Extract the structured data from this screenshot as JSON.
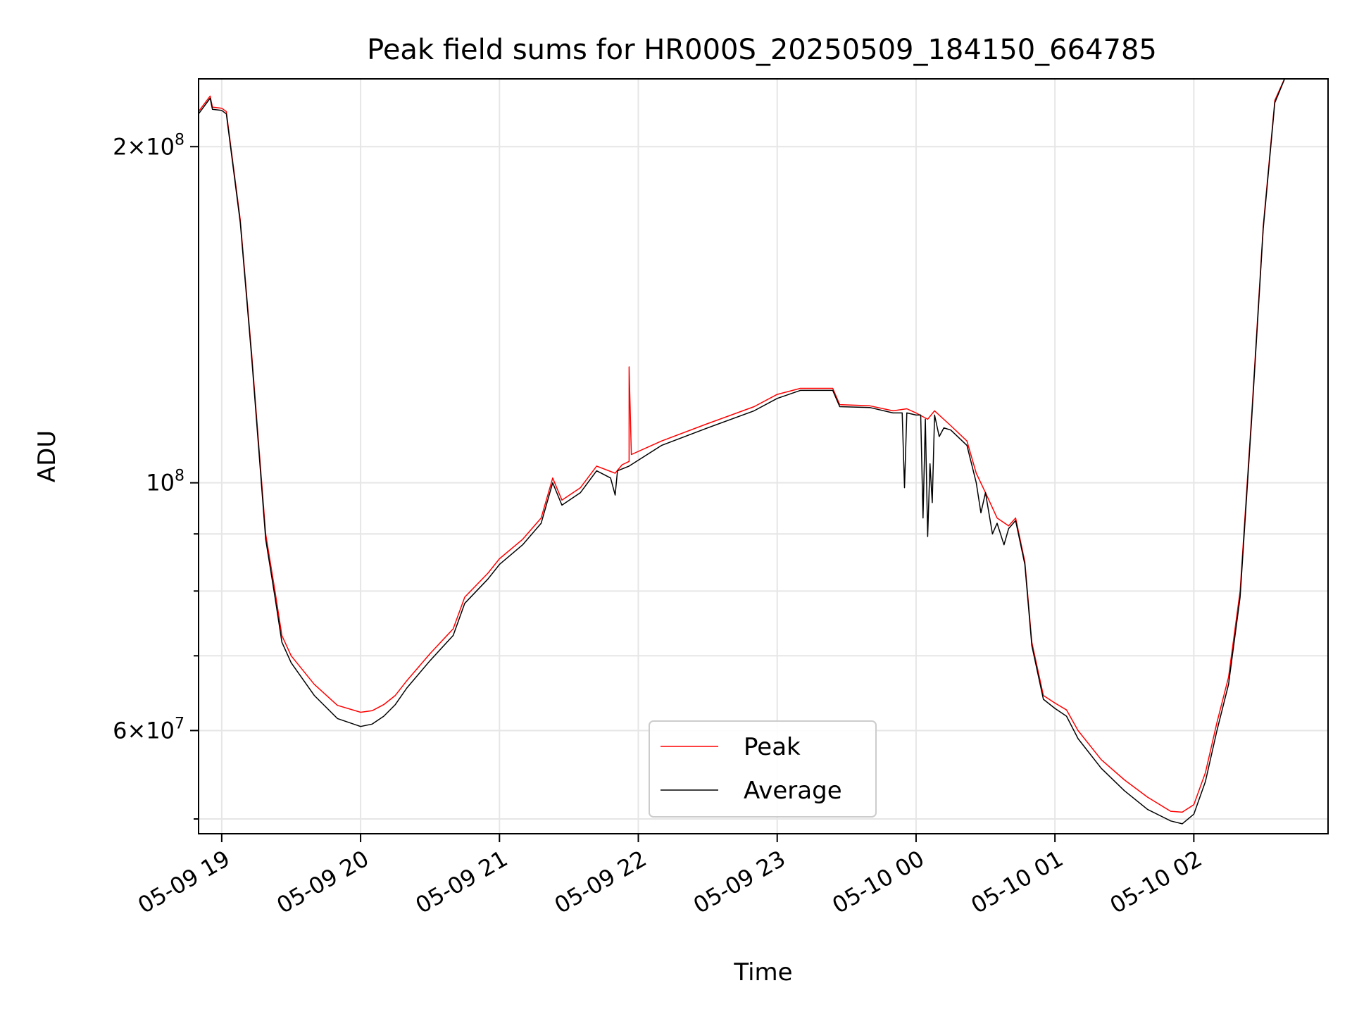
{
  "chart_data": {
    "type": "line",
    "title": "Peak field sums for HR000S_20250509_184150_664785",
    "xlabel": "Time",
    "ylabel": "ADU",
    "y_scale": "log",
    "ylim": [
      48500000,
      230000000
    ],
    "xlim": [
      "05-09 18:50",
      "05-10 02:58"
    ],
    "grid": true,
    "legend_position": "lower-center",
    "x_ticks": [
      {
        "t": "05-09 19:00",
        "label": "05-09 19"
      },
      {
        "t": "05-09 20:00",
        "label": "05-09 20"
      },
      {
        "t": "05-09 21:00",
        "label": "05-09 21"
      },
      {
        "t": "05-09 22:00",
        "label": "05-09 22"
      },
      {
        "t": "05-09 23:00",
        "label": "05-09 23"
      },
      {
        "t": "05-10 00:00",
        "label": "05-10 00"
      },
      {
        "t": "05-10 01:00",
        "label": "05-10 01"
      },
      {
        "t": "05-10 02:00",
        "label": "05-10 02"
      }
    ],
    "y_major_ticks": [
      {
        "value": 60000000,
        "mantissa": "6",
        "exponent": "7"
      },
      {
        "value": 100000000,
        "mantissa": "",
        "exponent": "8"
      },
      {
        "value": 200000000,
        "mantissa": "2",
        "exponent": "8"
      }
    ],
    "y_minor_ticks": [
      50000000,
      70000000,
      80000000,
      90000000
    ],
    "series": [
      {
        "name": "Peak",
        "color": "#ff0000",
        "points": [
          [
            "05-09 18:50",
            215000000
          ],
          [
            "05-09 18:55",
            222000000
          ],
          [
            "05-09 18:56",
            217000000
          ],
          [
            "05-09 19:00",
            216500000
          ],
          [
            "05-09 19:02",
            215000000
          ],
          [
            "05-09 19:08",
            172000000
          ],
          [
            "05-09 19:13",
            130000000
          ],
          [
            "05-09 19:19",
            90000000
          ],
          [
            "05-09 19:23",
            80000000
          ],
          [
            "05-09 19:26",
            73000000
          ],
          [
            "05-09 19:30",
            70000000
          ],
          [
            "05-09 19:40",
            66000000
          ],
          [
            "05-09 19:50",
            63200000
          ],
          [
            "05-09 20:00",
            62300000
          ],
          [
            "05-09 20:05",
            62500000
          ],
          [
            "05-09 20:10",
            63300000
          ],
          [
            "05-09 20:15",
            64500000
          ],
          [
            "05-09 20:20",
            66500000
          ],
          [
            "05-09 20:30",
            70300000
          ],
          [
            "05-09 20:40",
            74000000
          ],
          [
            "05-09 20:45",
            79000000
          ],
          [
            "05-09 20:55",
            83000000
          ],
          [
            "05-09 21:00",
            85500000
          ],
          [
            "05-09 21:10",
            89000000
          ],
          [
            "05-09 21:18",
            93000000
          ],
          [
            "05-09 21:23",
            101000000
          ],
          [
            "05-09 21:27",
            96500000
          ],
          [
            "05-09 21:35",
            99000000
          ],
          [
            "05-09 21:42",
            103500000
          ],
          [
            "05-09 21:50",
            102000000
          ],
          [
            "05-09 21:53",
            103800000
          ],
          [
            "05-09 21:56",
            104500000
          ],
          [
            "05-09 21:56",
            127000000
          ],
          [
            "05-09 21:57",
            106000000
          ],
          [
            "05-09 22:10",
            109000000
          ],
          [
            "05-09 22:30",
            113000000
          ],
          [
            "05-09 22:50",
            117000000
          ],
          [
            "05-09 23:00",
            120000000
          ],
          [
            "05-09 23:10",
            121500000
          ],
          [
            "05-09 23:24",
            121500000
          ],
          [
            "05-09 23:27",
            117500000
          ],
          [
            "05-09 23:40",
            117200000
          ],
          [
            "05-09 23:50",
            116000000
          ],
          [
            "05-09 23:56",
            116500000
          ],
          [
            "05-10 00:00",
            115500000
          ],
          [
            "05-10 00:05",
            114000000
          ],
          [
            "05-10 00:08",
            116000000
          ],
          [
            "05-10 00:15",
            112500000
          ],
          [
            "05-10 00:22",
            109000000
          ],
          [
            "05-10 00:26",
            102000000
          ],
          [
            "05-10 00:30",
            98000000
          ],
          [
            "05-10 00:35",
            93000000
          ],
          [
            "05-10 00:40",
            91500000
          ],
          [
            "05-10 00:43",
            93000000
          ],
          [
            "05-10 00:47",
            85000000
          ],
          [
            "05-10 00:50",
            72000000
          ],
          [
            "05-10 00:55",
            64500000
          ],
          [
            "05-10 01:00",
            63500000
          ],
          [
            "05-10 01:05",
            62600000
          ],
          [
            "05-10 01:10",
            60000000
          ],
          [
            "05-10 01:20",
            56500000
          ],
          [
            "05-10 01:30",
            54200000
          ],
          [
            "05-10 01:40",
            52300000
          ],
          [
            "05-10 01:50",
            50800000
          ],
          [
            "05-10 01:55",
            50700000
          ],
          [
            "05-10 02:00",
            51500000
          ],
          [
            "05-10 02:05",
            55000000
          ],
          [
            "05-10 02:10",
            61000000
          ],
          [
            "05-10 02:15",
            67000000
          ],
          [
            "05-10 02:20",
            80000000
          ],
          [
            "05-10 02:25",
            115000000
          ],
          [
            "05-10 02:30",
            170000000
          ],
          [
            "05-10 02:35",
            220000000
          ],
          [
            "05-10 02:40",
            232000000
          ],
          [
            "05-10 02:58",
            232000000
          ]
        ]
      },
      {
        "name": "Average",
        "color": "#000000",
        "points": [
          [
            "05-09 18:50",
            214000000
          ],
          [
            "05-09 18:55",
            221000000
          ],
          [
            "05-09 18:56",
            216000000
          ],
          [
            "05-09 19:00",
            215500000
          ],
          [
            "05-09 19:02",
            214000000
          ],
          [
            "05-09 19:08",
            171000000
          ],
          [
            "05-09 19:13",
            129000000
          ],
          [
            "05-09 19:19",
            89000000
          ],
          [
            "05-09 19:23",
            79000000
          ],
          [
            "05-09 19:26",
            72000000
          ],
          [
            "05-09 19:30",
            69000000
          ],
          [
            "05-09 19:40",
            64500000
          ],
          [
            "05-09 19:50",
            61500000
          ],
          [
            "05-09 20:00",
            60500000
          ],
          [
            "05-09 20:05",
            60800000
          ],
          [
            "05-09 20:10",
            61800000
          ],
          [
            "05-09 20:15",
            63300000
          ],
          [
            "05-09 20:20",
            65500000
          ],
          [
            "05-09 20:30",
            69300000
          ],
          [
            "05-09 20:40",
            73000000
          ],
          [
            "05-09 20:45",
            78000000
          ],
          [
            "05-09 20:55",
            82000000
          ],
          [
            "05-09 21:00",
            84500000
          ],
          [
            "05-09 21:10",
            88000000
          ],
          [
            "05-09 21:18",
            92000000
          ],
          [
            "05-09 21:23",
            100000000
          ],
          [
            "05-09 21:27",
            95500000
          ],
          [
            "05-09 21:35",
            98000000
          ],
          [
            "05-09 21:42",
            102500000
          ],
          [
            "05-09 21:48",
            101000000
          ],
          [
            "05-09 21:50",
            97500000
          ],
          [
            "05-09 21:51",
            102500000
          ],
          [
            "05-09 21:56",
            103500000
          ],
          [
            "05-09 22:10",
            108000000
          ],
          [
            "05-09 22:30",
            112000000
          ],
          [
            "05-09 22:50",
            116000000
          ],
          [
            "05-09 23:00",
            119000000
          ],
          [
            "05-09 23:10",
            121000000
          ],
          [
            "05-09 23:24",
            121000000
          ],
          [
            "05-09 23:27",
            117000000
          ],
          [
            "05-09 23:40",
            116800000
          ],
          [
            "05-09 23:50",
            115500000
          ],
          [
            "05-09 23:54",
            115500000
          ],
          [
            "05-09 23:55",
            99000000
          ],
          [
            "05-09 23:56",
            115500000
          ],
          [
            "05-10 00:00",
            115000000
          ],
          [
            "05-10 00:02",
            115000000
          ],
          [
            "05-10 00:03",
            93000000
          ],
          [
            "05-10 00:04",
            114000000
          ],
          [
            "05-10 00:05",
            89500000
          ],
          [
            "05-10 00:06",
            104000000
          ],
          [
            "05-10 00:07",
            96000000
          ],
          [
            "05-10 00:08",
            115000000
          ],
          [
            "05-10 00:10",
            110000000
          ],
          [
            "05-10 00:12",
            112000000
          ],
          [
            "05-10 00:15",
            111500000
          ],
          [
            "05-10 00:22",
            108000000
          ],
          [
            "05-10 00:26",
            100000000
          ],
          [
            "05-10 00:28",
            94000000
          ],
          [
            "05-10 00:30",
            98000000
          ],
          [
            "05-10 00:33",
            90000000
          ],
          [
            "05-10 00:35",
            92000000
          ],
          [
            "05-10 00:38",
            88000000
          ],
          [
            "05-10 00:40",
            91000000
          ],
          [
            "05-10 00:43",
            92500000
          ],
          [
            "05-10 00:47",
            84500000
          ],
          [
            "05-10 00:50",
            71500000
          ],
          [
            "05-10 00:55",
            64000000
          ],
          [
            "05-10 01:00",
            62800000
          ],
          [
            "05-10 01:05",
            61800000
          ],
          [
            "05-10 01:10",
            59000000
          ],
          [
            "05-10 01:20",
            55500000
          ],
          [
            "05-10 01:30",
            53000000
          ],
          [
            "05-10 01:40",
            51000000
          ],
          [
            "05-10 01:50",
            49800000
          ],
          [
            "05-10 01:55",
            49500000
          ],
          [
            "05-10 02:00",
            50500000
          ],
          [
            "05-10 02:05",
            54000000
          ],
          [
            "05-10 02:10",
            60000000
          ],
          [
            "05-10 02:15",
            66000000
          ],
          [
            "05-10 02:20",
            79000000
          ],
          [
            "05-10 02:25",
            114000000
          ],
          [
            "05-10 02:30",
            169000000
          ],
          [
            "05-10 02:35",
            219000000
          ],
          [
            "05-10 02:40",
            232000000
          ],
          [
            "05-10 02:58",
            232000000
          ]
        ]
      }
    ]
  }
}
